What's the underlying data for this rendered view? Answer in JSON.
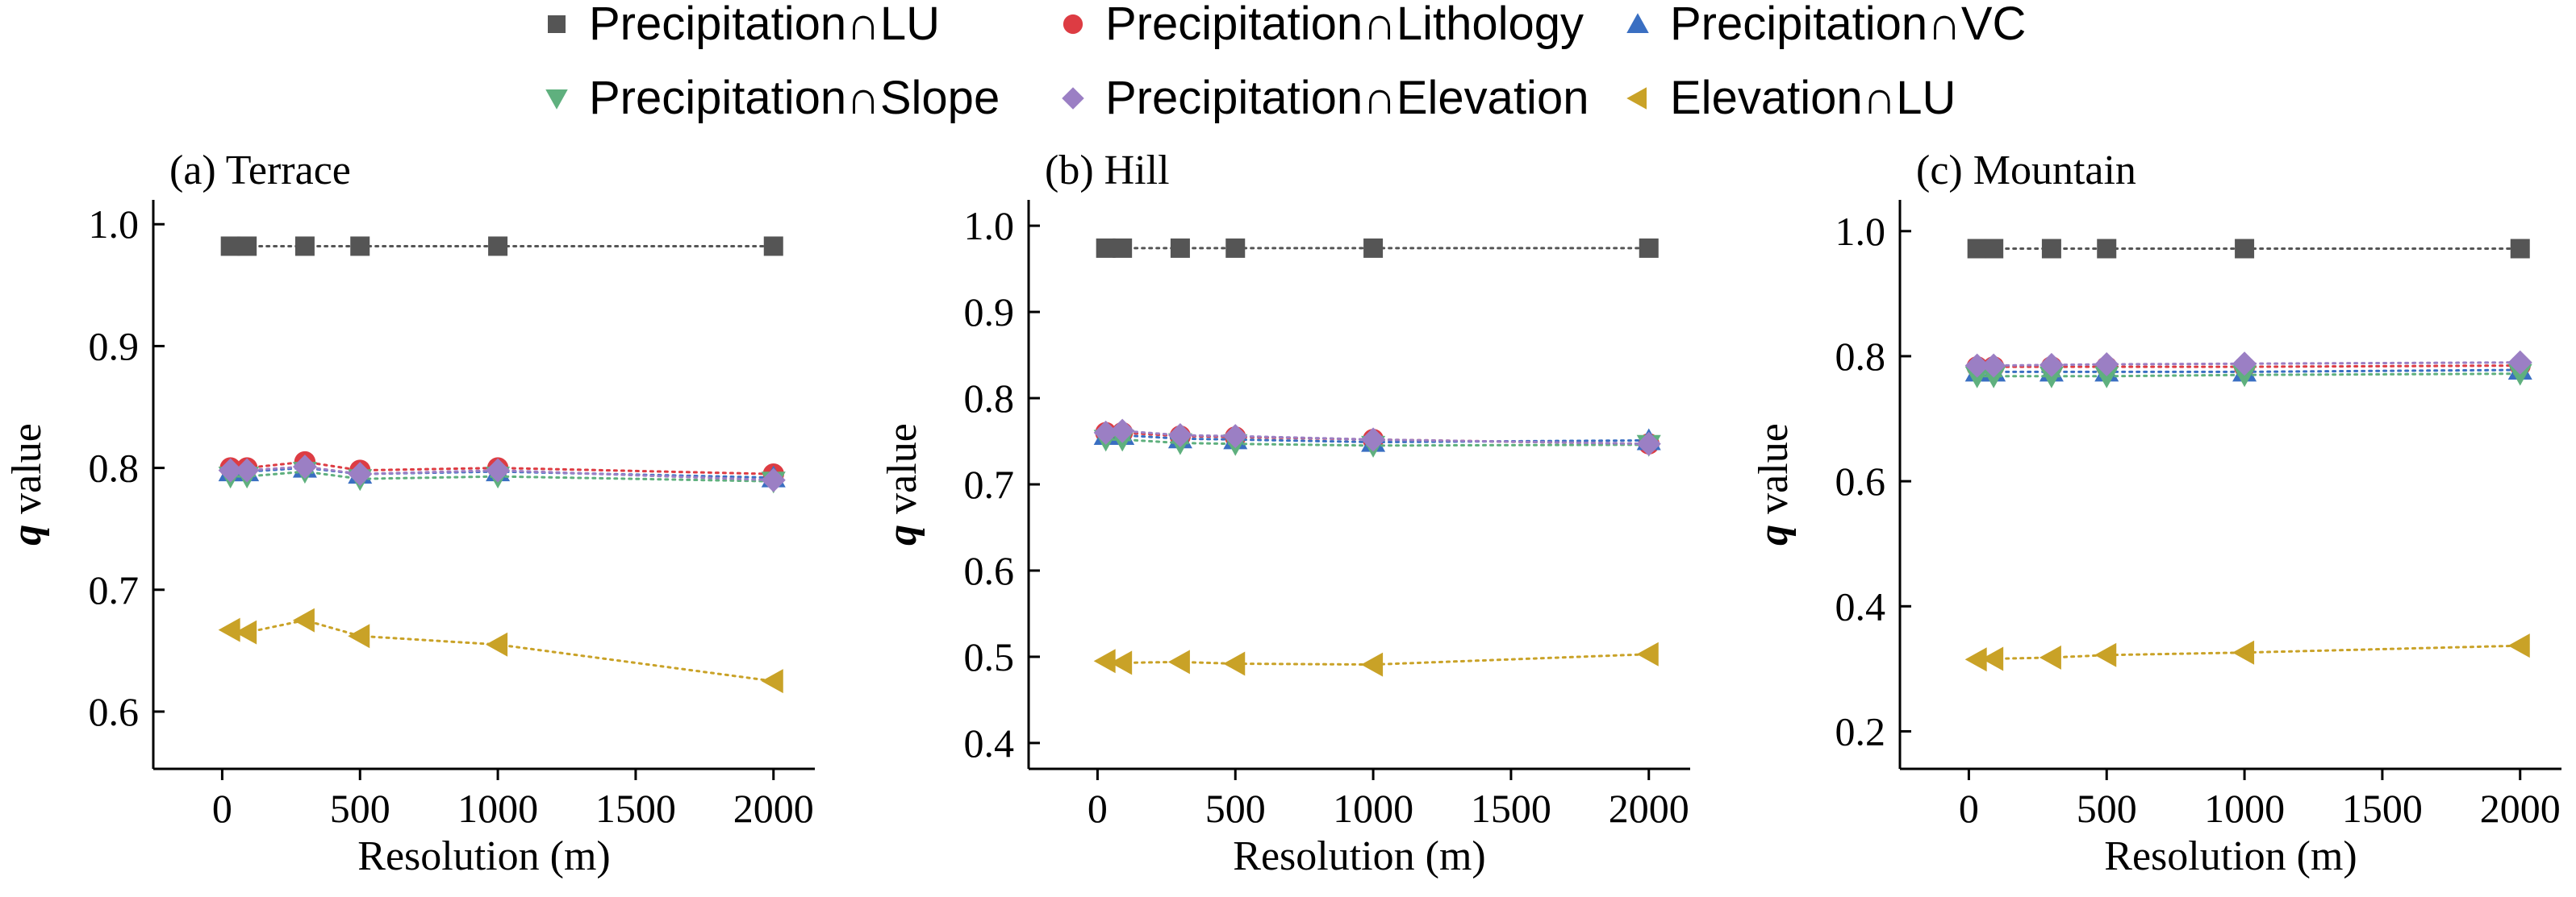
{
  "chart_data": {
    "type": "scatter",
    "legend": {
      "placement": "top",
      "entries": [
        {
          "key": "prec_lu",
          "label": "Precipitation∩LU",
          "marker": "square",
          "color": "#555555"
        },
        {
          "key": "prec_lith",
          "label": "Precipitation∩Lithology",
          "marker": "circle",
          "color": "#dd3c43"
        },
        {
          "key": "prec_vc",
          "label": "Precipitation∩VC",
          "marker": "triangle-up",
          "color": "#3a6fc2"
        },
        {
          "key": "prec_slope",
          "label": "Precipitation∩Slope",
          "marker": "triangle-down",
          "color": "#5fb07e"
        },
        {
          "key": "prec_elev",
          "label": "Precipitation∩Elevation",
          "marker": "diamond",
          "color": "#9b7fc4"
        },
        {
          "key": "elev_lu",
          "label": "Elevation∩LU",
          "marker": "triangle-left",
          "color": "#c9a227"
        }
      ]
    },
    "panels": [
      {
        "title": "(a) Terrace",
        "xlabel": "Resolution (m)",
        "ylabel_italic": "q",
        "ylabel_rest": " value",
        "xlim": [
          -250,
          2150
        ],
        "ylim": [
          0.553,
          1.02
        ],
        "xticks": [
          0,
          500,
          1000,
          1500,
          2000
        ],
        "yticks": [
          0.6,
          0.7,
          0.8,
          0.9,
          1.0
        ],
        "ytick_labels": [
          "0.6",
          "0.7",
          "0.8",
          "0.9",
          "1.0"
        ],
        "x": [
          30,
          90,
          300,
          500,
          1000,
          2000
        ],
        "series": [
          {
            "key": "prec_lu",
            "values": [
              0.982,
              0.982,
              0.982,
              0.982,
              0.982,
              0.982
            ]
          },
          {
            "key": "prec_lith",
            "values": [
              0.8,
              0.8,
              0.805,
              0.798,
              0.8,
              0.795
            ]
          },
          {
            "key": "prec_vc",
            "values": [
              0.797,
              0.797,
              0.8,
              0.795,
              0.797,
              0.792
            ]
          },
          {
            "key": "prec_slope",
            "values": [
              0.793,
              0.793,
              0.797,
              0.791,
              0.793,
              0.789
            ]
          },
          {
            "key": "prec_elev",
            "values": [
              0.798,
              0.798,
              0.801,
              0.795,
              0.798,
              0.79
            ]
          },
          {
            "key": "elev_lu",
            "values": [
              0.667,
              0.665,
              0.675,
              0.662,
              0.655,
              0.625
            ]
          }
        ]
      },
      {
        "title": "(b) Hill",
        "xlabel": "Resolution (m)",
        "ylabel_italic": "q",
        "ylabel_rest": " value",
        "xlim": [
          -250,
          2150
        ],
        "ylim": [
          0.37,
          1.03
        ],
        "xticks": [
          0,
          500,
          1000,
          1500,
          2000
        ],
        "yticks": [
          0.4,
          0.5,
          0.6,
          0.7,
          0.8,
          0.9,
          1.0
        ],
        "ytick_labels": [
          "0.4",
          "0.5",
          "0.6",
          "0.7",
          "0.8",
          "0.9",
          "1.0"
        ],
        "x": [
          30,
          90,
          300,
          500,
          1000,
          2000
        ],
        "series": [
          {
            "key": "prec_lu",
            "values": [
              0.974,
              0.974,
              0.974,
              0.974,
              0.974,
              0.974
            ]
          },
          {
            "key": "prec_lith",
            "values": [
              0.76,
              0.76,
              0.756,
              0.755,
              0.752,
              0.747
            ]
          },
          {
            "key": "prec_vc",
            "values": [
              0.757,
              0.757,
              0.753,
              0.752,
              0.749,
              0.751
            ]
          },
          {
            "key": "prec_slope",
            "values": [
              0.752,
              0.752,
              0.748,
              0.747,
              0.745,
              0.746
            ]
          },
          {
            "key": "prec_elev",
            "values": [
              0.76,
              0.762,
              0.757,
              0.756,
              0.752,
              0.747
            ]
          },
          {
            "key": "elev_lu",
            "values": [
              0.495,
              0.493,
              0.494,
              0.492,
              0.491,
              0.503
            ]
          }
        ]
      },
      {
        "title": "(c) Mountain",
        "xlabel": "Resolution (m)",
        "ylabel_italic": "q",
        "ylabel_rest": " value",
        "xlim": [
          -250,
          2150
        ],
        "ylim": [
          0.14,
          1.05
        ],
        "xticks": [
          0,
          500,
          1000,
          1500,
          2000
        ],
        "yticks": [
          0.2,
          0.4,
          0.6,
          0.8,
          1.0
        ],
        "ytick_labels": [
          "0.2",
          "0.4",
          "0.6",
          "0.8",
          "1.0"
        ],
        "x": [
          30,
          90,
          300,
          500,
          1000,
          2000
        ],
        "series": [
          {
            "key": "prec_lu",
            "values": [
              0.972,
              0.972,
              0.972,
              0.972,
              0.972,
              0.972
            ]
          },
          {
            "key": "prec_lith",
            "values": [
              0.783,
              0.783,
              0.783,
              0.783,
              0.783,
              0.785
            ]
          },
          {
            "key": "prec_vc",
            "values": [
              0.775,
              0.775,
              0.775,
              0.775,
              0.775,
              0.778
            ]
          },
          {
            "key": "prec_slope",
            "values": [
              0.768,
              0.768,
              0.768,
              0.768,
              0.77,
              0.772
            ]
          },
          {
            "key": "prec_elev",
            "values": [
              0.785,
              0.785,
              0.786,
              0.787,
              0.788,
              0.79
            ]
          },
          {
            "key": "elev_lu",
            "values": [
              0.315,
              0.316,
              0.318,
              0.322,
              0.326,
              0.337
            ]
          }
        ]
      }
    ]
  }
}
